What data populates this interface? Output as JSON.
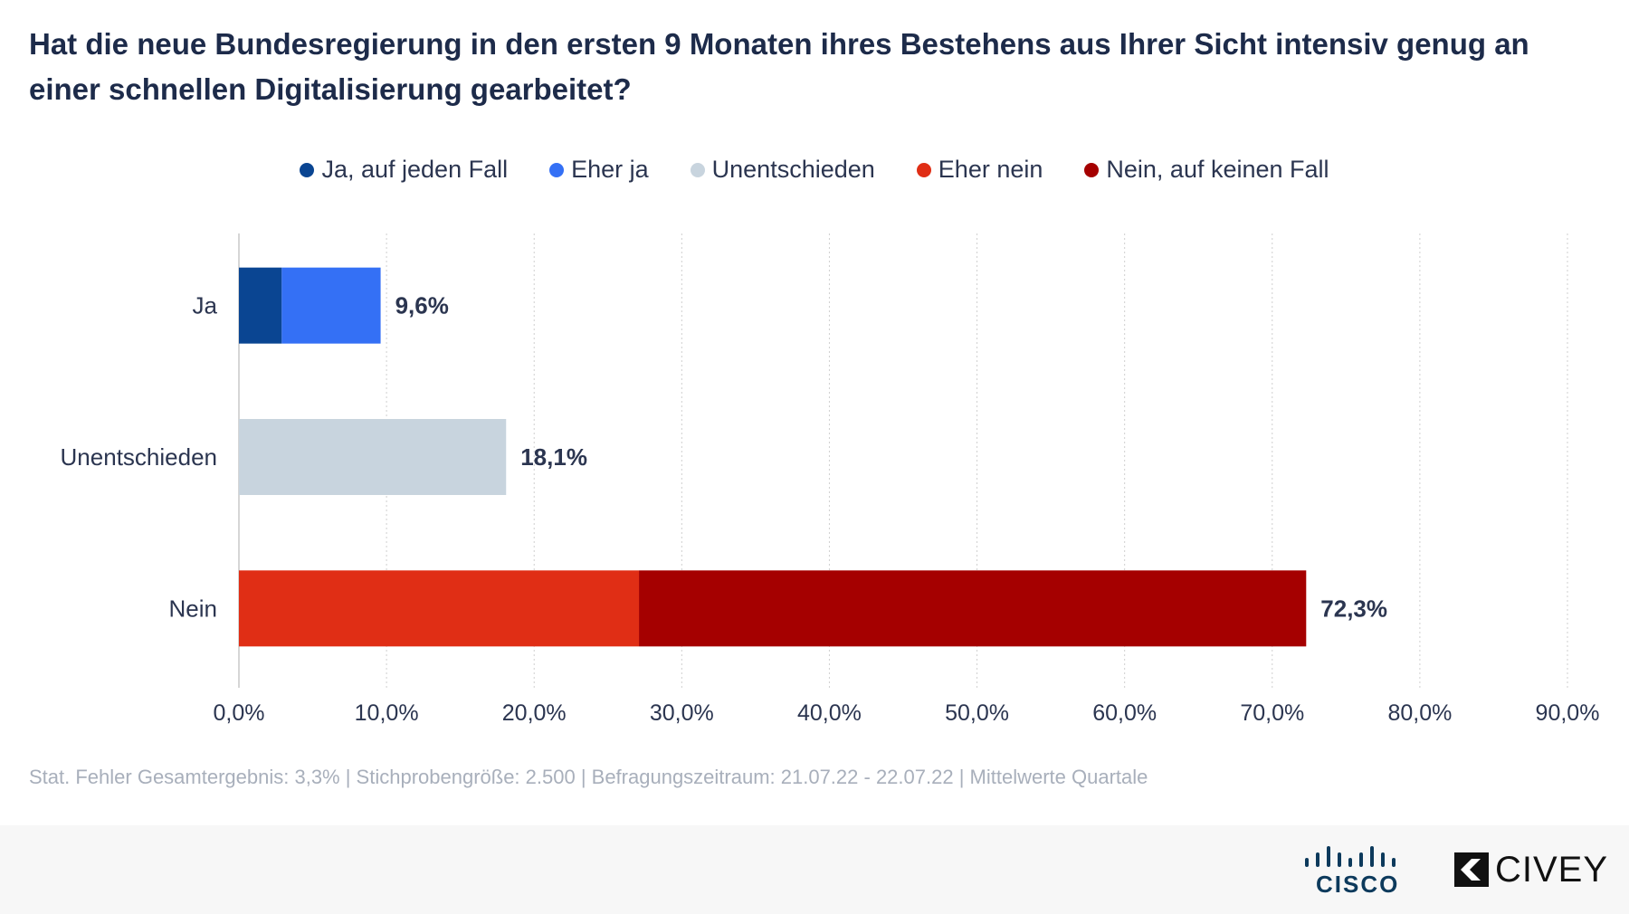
{
  "title": "Hat die neue Bundesregierung in den ersten 9 Monaten ihres Bestehens aus Ihrer Sicht intensiv genug an einer schnellen Digitalisierung gearbeitet?",
  "footnote": "Stat. Fehler Gesamtergebnis: 3,3% | Stichprobengröße: 2.500 | Befragungszeitraum: 21.07.22 - 22.07.22 | Mittelwerte Quartale",
  "legend": [
    {
      "label": "Ja, auf jeden Fall",
      "color": "#0a4592"
    },
    {
      "label": "Eher ja",
      "color": "#3470f5"
    },
    {
      "label": "Unentschieden",
      "color": "#c8d4de"
    },
    {
      "label": "Eher nein",
      "color": "#e02e15"
    },
    {
      "label": "Nein, auf keinen Fall",
      "color": "#a50000"
    }
  ],
  "chart_data": {
    "type": "bar",
    "orientation": "horizontal",
    "stacked": true,
    "categories": [
      "Ja",
      "Unentschieden",
      "Nein"
    ],
    "series": [
      {
        "name": "Ja, auf jeden Fall",
        "color": "#0a4592",
        "values": [
          2.9,
          0,
          0
        ]
      },
      {
        "name": "Eher ja",
        "color": "#3470f5",
        "values": [
          6.7,
          0,
          0
        ]
      },
      {
        "name": "Unentschieden",
        "color": "#c8d4de",
        "values": [
          0,
          18.1,
          0
        ]
      },
      {
        "name": "Eher nein",
        "color": "#e02e15",
        "values": [
          0,
          0,
          27.1
        ]
      },
      {
        "name": "Nein, auf keinen Fall",
        "color": "#a50000",
        "values": [
          0,
          0,
          45.2
        ]
      }
    ],
    "totals": [
      "9,6%",
      "18,1%",
      "72,3%"
    ],
    "xlim": [
      0,
      90
    ],
    "xticks": [
      "0,0%",
      "10,0%",
      "20,0%",
      "30,0%",
      "40,0%",
      "50,0%",
      "60,0%",
      "70,0%",
      "80,0%",
      "90,0%"
    ],
    "grid": true,
    "legend_position": "top"
  },
  "logos": {
    "cisco_text": "CISCO",
    "civey_text": "CIVEY"
  }
}
